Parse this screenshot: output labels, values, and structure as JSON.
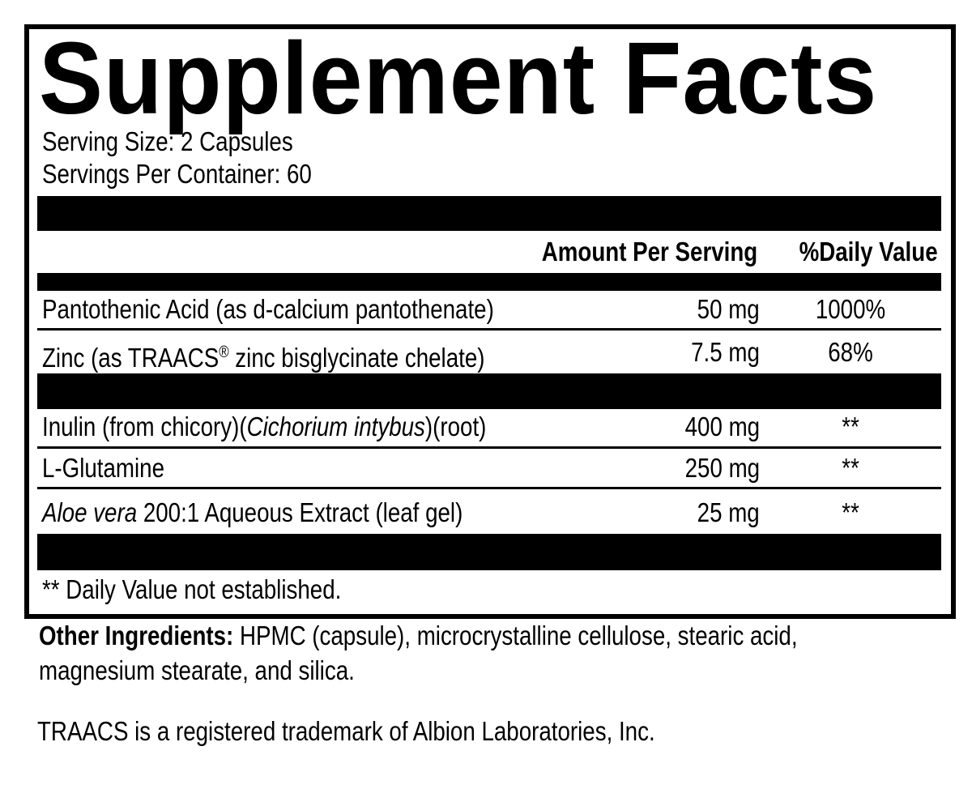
{
  "title": "Supplement Facts",
  "serving_size": "Serving Size: 2 Capsules",
  "servings_per_container": "Servings Per Container: 60",
  "header": {
    "amount": "Amount Per Serving",
    "dv": "%Daily Value"
  },
  "nutrients": [
    {
      "name": "Pantothenic Acid (as d-calcium pantothenate)",
      "amount": "50 mg",
      "dv": "1000%"
    },
    {
      "name_pre": "Zinc (as TRAACS",
      "reg": "®",
      "name_post": " zinc bisglycinate chelate)",
      "amount": "7.5 mg",
      "dv": "68%"
    }
  ],
  "ingredients": [
    {
      "name_pre": "Inulin (from chicory)(",
      "italic": "Cichorium intybus",
      "name_post": ")(root)",
      "amount": "400 mg",
      "dv": "**"
    },
    {
      "name": "L-Glutamine",
      "amount": "250 mg",
      "dv": "**"
    },
    {
      "italic": "Aloe vera",
      "name_post": " 200:1 Aqueous Extract (leaf gel)",
      "amount": "25 mg",
      "dv": "**"
    }
  ],
  "footnote": "** Daily Value not established.",
  "other_ingredients": {
    "label": "Other Ingredients:",
    "line1": " HPMC (capsule), microcrystalline cellulose, stearic acid,",
    "line2": "magnesium stearate, and silica."
  },
  "trademark": "TRAACS is a registered trademark of Albion Laboratories, Inc."
}
